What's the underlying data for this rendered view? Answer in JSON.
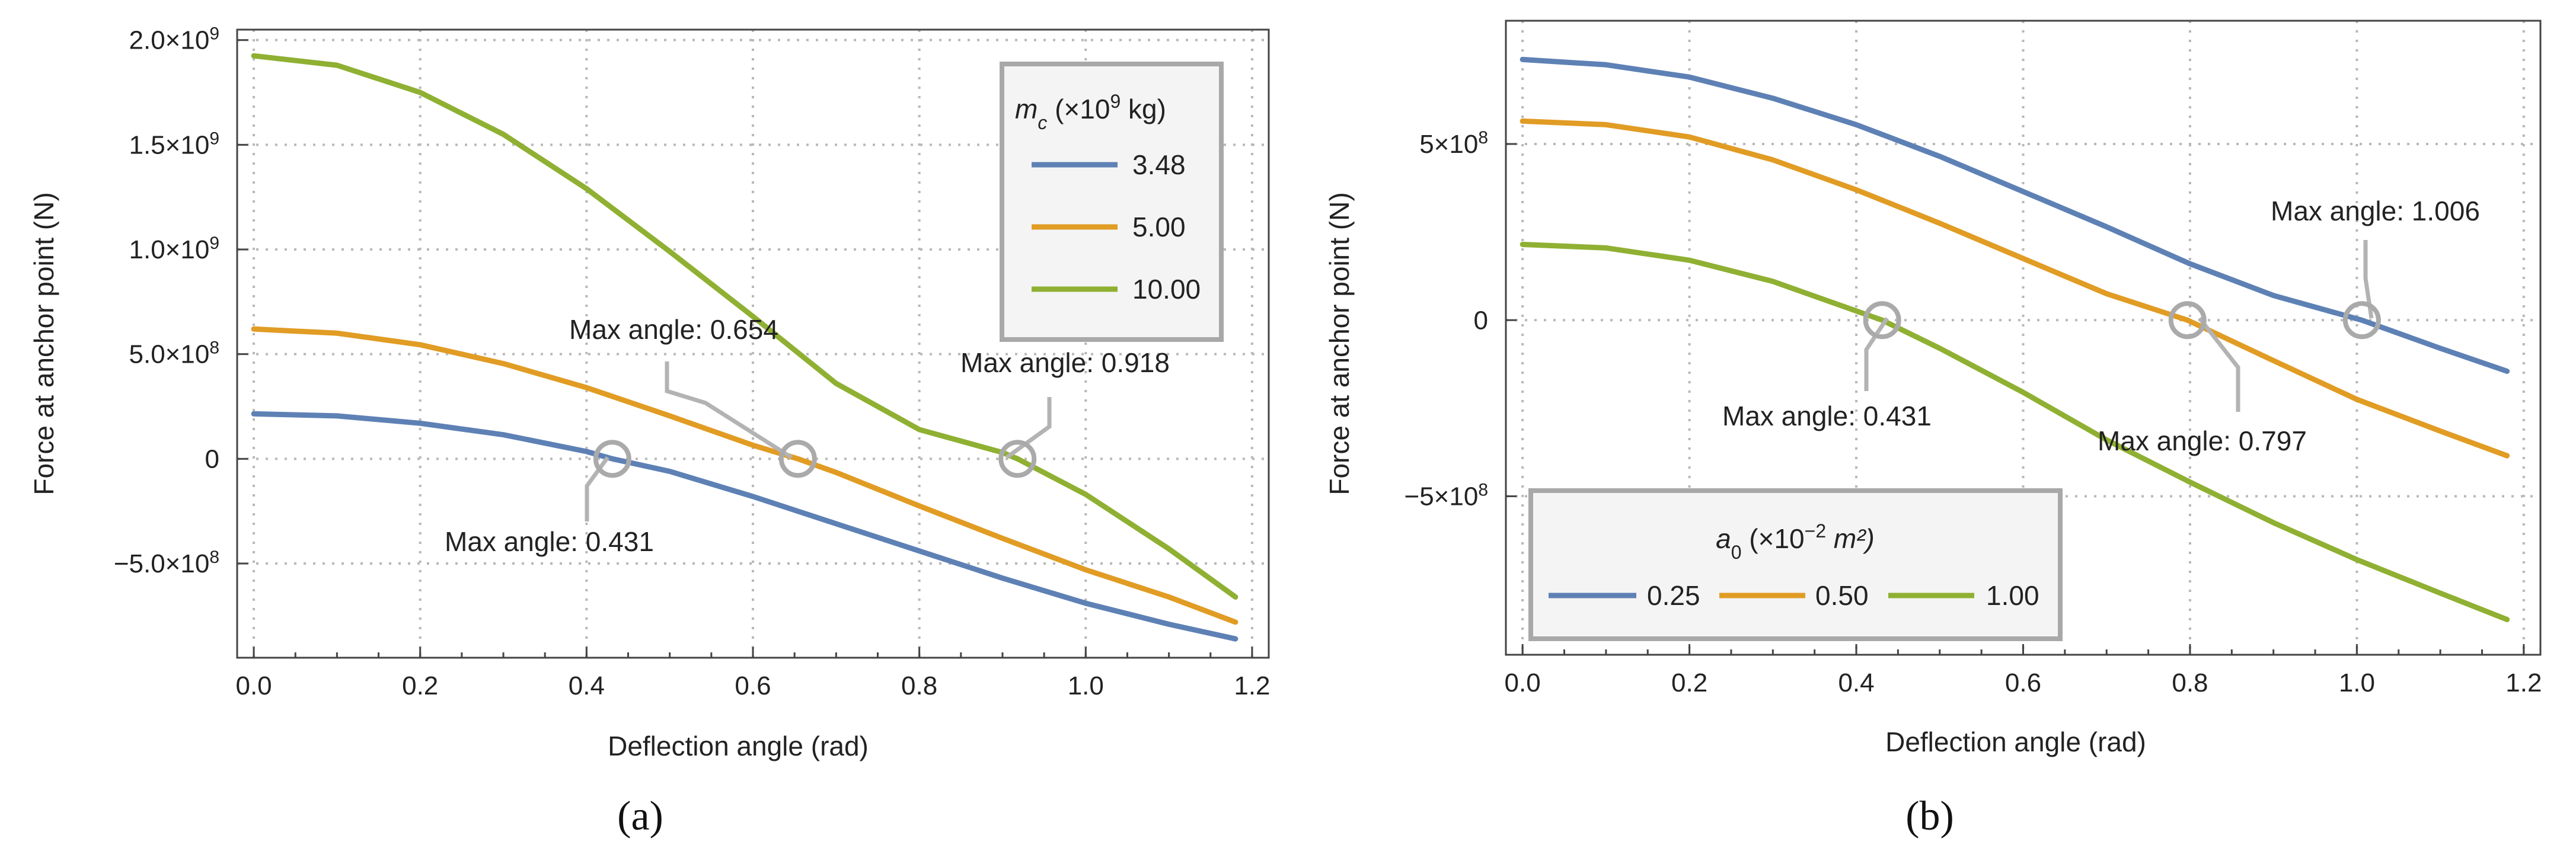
{
  "chart_data": [
    {
      "type": "line",
      "panel_label": "(a)",
      "xlabel": "Deflection angle (rad)",
      "ylabel": "Force at anchor point (N)",
      "xlim": [
        -0.02,
        1.22
      ],
      "ylim": [
        -950000000,
        2050000000
      ],
      "xticks": [
        0.0,
        0.2,
        0.4,
        0.6,
        0.8,
        1.0,
        1.2
      ],
      "xtick_labels": [
        "0.0",
        "0.2",
        "0.4",
        "0.6",
        "0.8",
        "1.0",
        "1.2"
      ],
      "yticks": [
        -500000000,
        0,
        500000000,
        1000000000,
        1500000000,
        2000000000
      ],
      "ytick_labels": [
        "−5.0×10",
        "0",
        "5.0×10",
        "1.0×10",
        "1.5×10",
        "2.0×10"
      ],
      "ytick_exponents": [
        "8",
        "",
        "8",
        "9",
        "9",
        "9"
      ],
      "grid": true,
      "legend": {
        "position": "top-right",
        "title_var": "m",
        "title_sub": "c",
        "title_rest": " (×10",
        "title_sup": "9",
        "title_end": " kg)",
        "layout": "vertical"
      },
      "series": [
        {
          "name": "3.48",
          "color": "#5e81b5",
          "x": [
            0.0,
            0.1,
            0.2,
            0.3,
            0.4,
            0.431,
            0.5,
            0.6,
            0.7,
            0.8,
            0.9,
            1.0,
            1.1,
            1.18
          ],
          "y": [
            215000000,
            205000000,
            170000000,
            115000000,
            35000000,
            0,
            -60000000,
            -180000000,
            -310000000,
            -440000000,
            -570000000,
            -690000000,
            -790000000,
            -860000000
          ]
        },
        {
          "name": "5.00",
          "color": "#e19c24",
          "x": [
            0.0,
            0.1,
            0.2,
            0.3,
            0.4,
            0.5,
            0.6,
            0.654,
            0.7,
            0.8,
            0.9,
            1.0,
            1.1,
            1.18
          ],
          "y": [
            620000000,
            600000000,
            545000000,
            455000000,
            340000000,
            205000000,
            65000000,
            0,
            -65000000,
            -225000000,
            -380000000,
            -530000000,
            -660000000,
            -780000000
          ]
        },
        {
          "name": "10.00",
          "color": "#8fb032",
          "x": [
            0.0,
            0.1,
            0.2,
            0.3,
            0.4,
            0.5,
            0.6,
            0.7,
            0.8,
            0.9,
            0.918,
            1.0,
            1.1,
            1.18
          ],
          "y": [
            1925000000,
            1880000000,
            1750000000,
            1550000000,
            1290000000,
            990000000,
            680000000,
            360000000,
            140000000,
            30000000,
            0,
            -170000000,
            -430000000,
            -660000000
          ]
        }
      ],
      "annotations": [
        {
          "text": "Max angle: 0.431",
          "x": 0.431,
          "y": 0
        },
        {
          "text": "Max angle: 0.654",
          "x": 0.654,
          "y": 0
        },
        {
          "text": "Max angle: 0.918",
          "x": 0.918,
          "y": 0
        }
      ]
    },
    {
      "type": "line",
      "panel_label": "(b)",
      "xlabel": "Deflection angle (rad)",
      "ylabel": "Force at anchor point (N)",
      "xlim": [
        -0.02,
        1.22
      ],
      "ylim": [
        -950000000,
        850000000
      ],
      "xticks": [
        0.0,
        0.2,
        0.4,
        0.6,
        0.8,
        1.0,
        1.2
      ],
      "xtick_labels": [
        "0.0",
        "0.2",
        "0.4",
        "0.6",
        "0.8",
        "1.0",
        "1.2"
      ],
      "yticks": [
        -500000000,
        0,
        500000000
      ],
      "ytick_labels": [
        "−5×10",
        "0",
        "5×10"
      ],
      "ytick_exponents": [
        "8",
        "",
        "8"
      ],
      "grid": true,
      "legend": {
        "position": "bottom-left",
        "title_var": "a",
        "title_sub": "0",
        "title_rest": " (×10",
        "title_sup": "−2",
        "title_end": " m²)",
        "layout": "horizontal"
      },
      "series": [
        {
          "name": "0.25",
          "color": "#5e81b5",
          "x": [
            0.0,
            0.1,
            0.2,
            0.3,
            0.4,
            0.5,
            0.6,
            0.7,
            0.8,
            0.9,
            1.006,
            1.1,
            1.18
          ],
          "y": [
            740000000,
            725000000,
            690000000,
            630000000,
            555000000,
            465000000,
            365000000,
            265000000,
            160000000,
            70000000,
            0,
            -80000000,
            -145000000
          ]
        },
        {
          "name": "0.50",
          "color": "#e19c24",
          "x": [
            0.0,
            0.1,
            0.2,
            0.3,
            0.4,
            0.5,
            0.6,
            0.7,
            0.797,
            0.9,
            1.0,
            1.1,
            1.18
          ],
          "y": [
            565000000,
            555000000,
            520000000,
            455000000,
            370000000,
            275000000,
            175000000,
            75000000,
            0,
            -115000000,
            -225000000,
            -315000000,
            -385000000
          ]
        },
        {
          "name": "1.00",
          "color": "#8fb032",
          "x": [
            0.0,
            0.1,
            0.2,
            0.3,
            0.431,
            0.5,
            0.6,
            0.7,
            0.8,
            0.9,
            1.0,
            1.1,
            1.18
          ],
          "y": [
            215000000,
            205000000,
            170000000,
            110000000,
            0,
            -80000000,
            -205000000,
            -340000000,
            -460000000,
            -575000000,
            -680000000,
            -775000000,
            -850000000
          ]
        }
      ],
      "annotations": [
        {
          "text": "Max angle: 0.431",
          "x": 0.431,
          "y": 0
        },
        {
          "text": "Max angle: 0.797",
          "x": 0.797,
          "y": 0
        },
        {
          "text": "Max angle: 1.006",
          "x": 1.006,
          "y": 0
        }
      ]
    }
  ]
}
